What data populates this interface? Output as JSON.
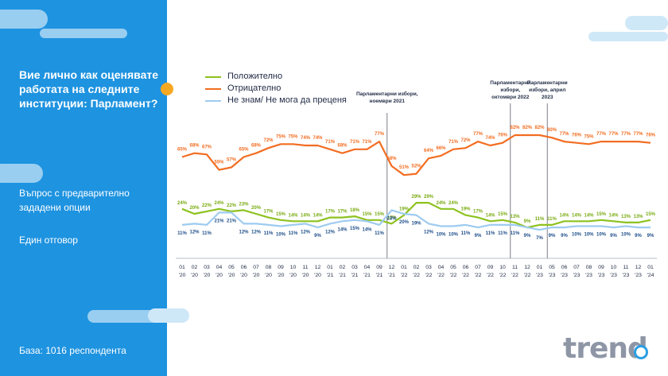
{
  "sidebar": {
    "question": "Вие лично как оценявате работата на следните институции: Парламент?",
    "question_type": "Въпрос с предварително зададени опции",
    "answer_type": "Един отговор",
    "base": "База: 1016 респондента"
  },
  "logo": {
    "text": "trend"
  },
  "colors": {
    "positive": "#8dc21f",
    "negative": "#f26d21",
    "dontknow": "#9ecbf0",
    "sidebar": "#1e93e0",
    "accent": "#f7a823"
  },
  "chart_data": {
    "type": "line",
    "x": [
      "01 '20",
      "02 '20",
      "03 '20",
      "04 '20",
      "05 '20",
      "06 '20",
      "07 '20",
      "08 '20",
      "09 '20",
      "10 '20",
      "11 '20",
      "12 '20",
      "01 '21",
      "02 '21",
      "03 '21",
      "04 '21",
      "09 '21",
      "12 '21",
      "01 '22",
      "02 '22",
      "03 '22",
      "04 '22",
      "05 '22",
      "06 '22",
      "07 '22",
      "09 '22",
      "10 '22",
      "11 '22",
      "12 '22",
      "01 '23",
      "05 '23",
      "06 '23",
      "07 '23",
      "08 '23",
      "09 '23",
      "10 '23",
      "11 '23",
      "12 '23",
      "01 '24"
    ],
    "x_ticks": [
      {
        "month": "01",
        "year": "'20"
      },
      {
        "month": "02",
        "year": "'20"
      },
      {
        "month": "03",
        "year": "'20"
      },
      {
        "month": "04",
        "year": "'20"
      },
      {
        "month": "05",
        "year": "'20"
      },
      {
        "month": "06",
        "year": "'20"
      },
      {
        "month": "07",
        "year": "'20"
      },
      {
        "month": "08",
        "year": "'20"
      },
      {
        "month": "09",
        "year": "'20"
      },
      {
        "month": "10",
        "year": "'20"
      },
      {
        "month": "11",
        "year": "'20"
      },
      {
        "month": "12",
        "year": "'20"
      },
      {
        "month": "01",
        "year": "'21"
      },
      {
        "month": "02",
        "year": "'21"
      },
      {
        "month": "03",
        "year": "'21"
      },
      {
        "month": "04",
        "year": "'21"
      },
      {
        "month": "09",
        "year": "'21"
      },
      {
        "month": "12",
        "year": "'21"
      },
      {
        "month": "01",
        "year": "'22"
      },
      {
        "month": "02",
        "year": "'22"
      },
      {
        "month": "03",
        "year": "'22"
      },
      {
        "month": "04",
        "year": "'22"
      },
      {
        "month": "05",
        "year": "'22"
      },
      {
        "month": "06",
        "year": "'22"
      },
      {
        "month": "07",
        "year": "'22"
      },
      {
        "month": "09",
        "year": "'22"
      },
      {
        "month": "10",
        "year": "'22"
      },
      {
        "month": "11",
        "year": "'22"
      },
      {
        "month": "12",
        "year": "'22"
      },
      {
        "month": "01",
        "year": "'23"
      },
      {
        "month": "05",
        "year": "'23"
      },
      {
        "month": "06",
        "year": "'23"
      },
      {
        "month": "07",
        "year": "'23"
      },
      {
        "month": "08",
        "year": "'23"
      },
      {
        "month": "09",
        "year": "'23"
      },
      {
        "month": "10",
        "year": "'23"
      },
      {
        "month": "11",
        "year": "'23"
      },
      {
        "month": "12",
        "year": "'23"
      },
      {
        "month": "01",
        "year": "'24"
      }
    ],
    "series": [
      {
        "key": "positive",
        "name": "Положително",
        "color": "#8dc21f",
        "values": [
          24,
          20,
          22,
          24,
          22,
          23,
          20,
          17,
          15,
          14,
          14,
          14,
          17,
          17,
          18,
          15,
          15,
          12,
          19,
          29,
          29,
          24,
          24,
          19,
          17,
          14,
          15,
          13,
          9,
          11,
          11,
          14,
          14,
          14,
          15,
          14,
          13,
          13,
          15
        ]
      },
      {
        "key": "negative",
        "name": "Отрицателно",
        "color": "#f26d21",
        "values": [
          65,
          68,
          67,
          55,
          57,
          65,
          68,
          72,
          75,
          75,
          74,
          74,
          71,
          68,
          71,
          71,
          77,
          58,
          51,
          52,
          64,
          66,
          71,
          72,
          77,
          74,
          76,
          82,
          82,
          82,
          80,
          77,
          76,
          75,
          77,
          77,
          77,
          77,
          76
        ]
      },
      {
        "key": "dontknow",
        "name": "Не знам/ Не мога да преценя",
        "color": "#9ecbf0",
        "values": [
          11,
          12,
          11,
          21,
          21,
          12,
          12,
          11,
          10,
          11,
          12,
          9,
          12,
          14,
          15,
          14,
          11,
          23,
          20,
          19,
          12,
          10,
          10,
          11,
          9,
          11,
          11,
          11,
          9,
          7,
          9,
          9,
          10,
          10,
          10,
          9,
          10,
          9,
          9
        ]
      }
    ],
    "annotations": [
      {
        "after_index": 16,
        "lines": [
          "Парламентарни избори,",
          "ноември 2021"
        ]
      },
      {
        "after_index": 26,
        "lines": [
          "Парламентарни",
          "избори,",
          "октомври 2022"
        ]
      },
      {
        "after_index": 29,
        "lines": [
          "Парламентарни",
          "избори, април",
          "2023"
        ]
      }
    ],
    "ylim": [
      0,
      100
    ],
    "grid": false,
    "legend_position": "top-left"
  }
}
